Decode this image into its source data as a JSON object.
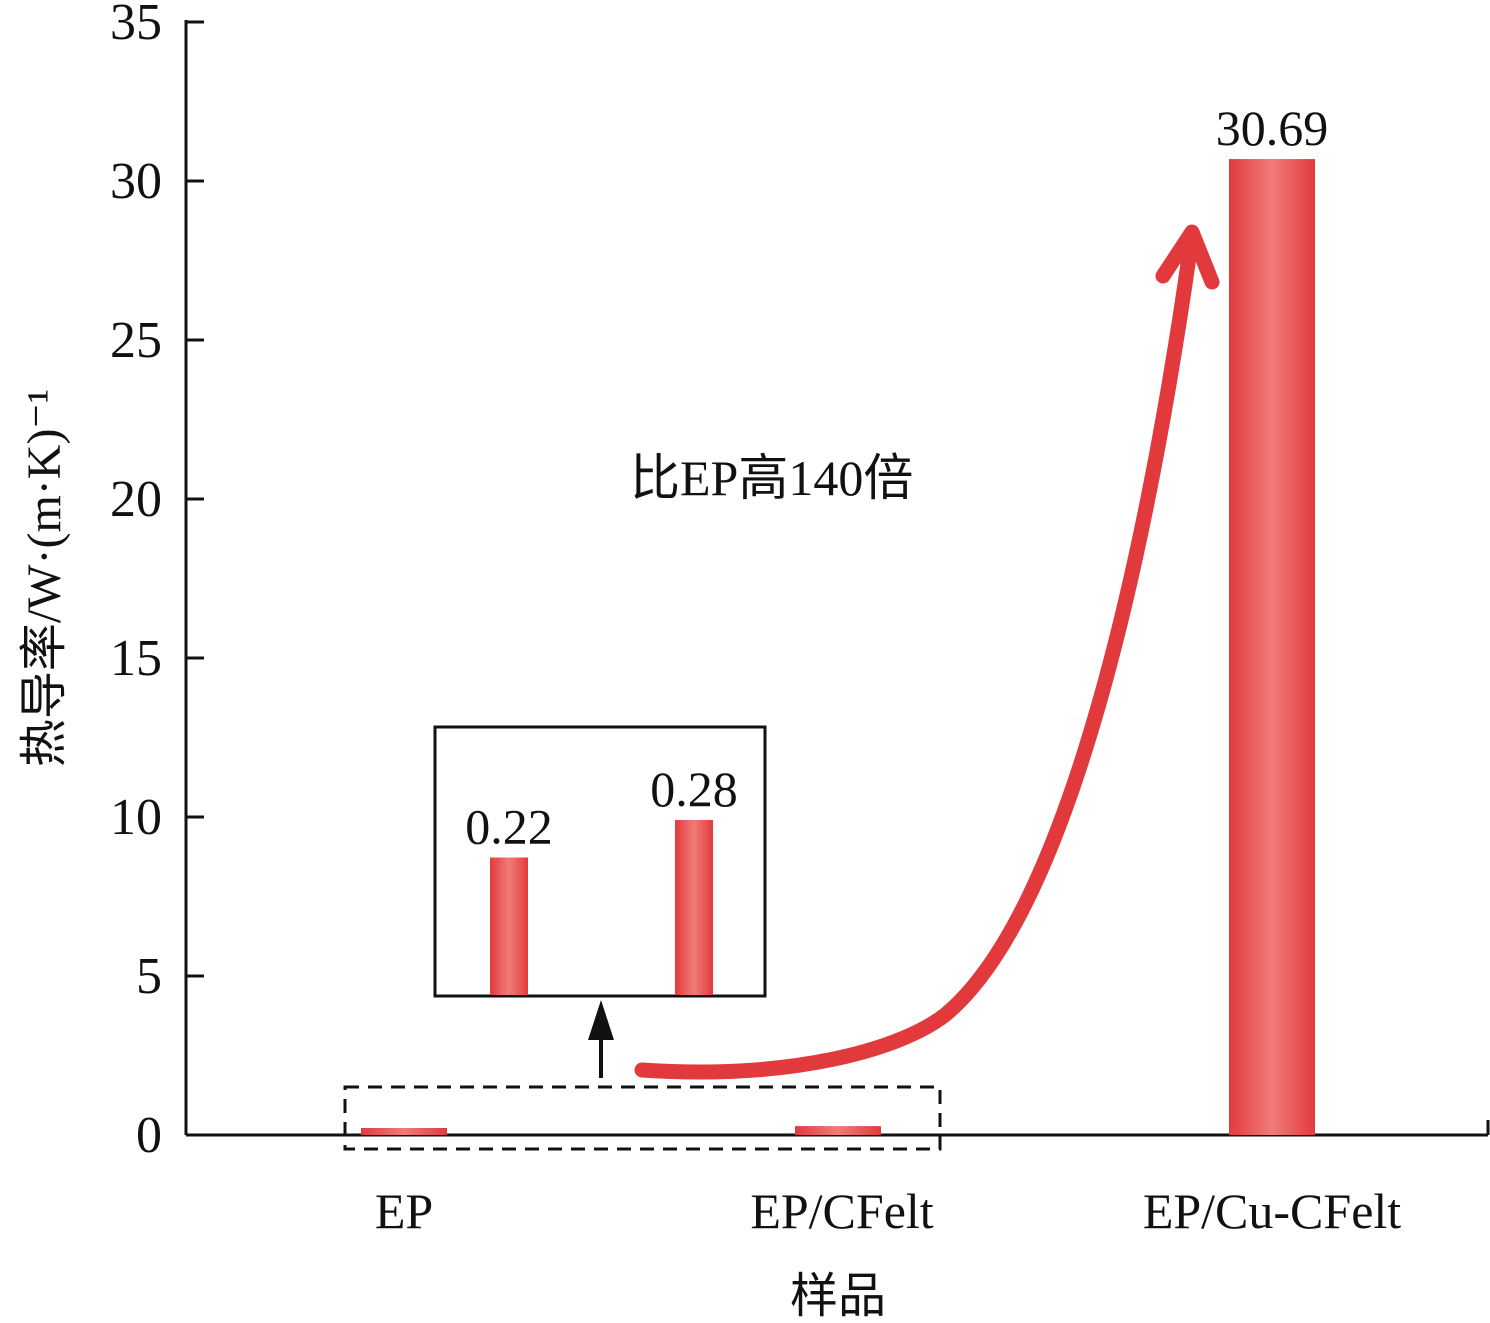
{
  "chart_data": {
    "type": "bar",
    "categories": [
      "EP",
      "EP/CFelt",
      "EP/Cu-CFelt"
    ],
    "values": [
      0.22,
      0.28,
      30.69
    ],
    "data_labels": [
      "0.22",
      "0.28",
      "30.69"
    ],
    "xlabel": "样品",
    "ylabel": "热导率/W·(m·K)⁻¹",
    "ylim": [
      0,
      35
    ],
    "yticks": [
      "0",
      "5",
      "10",
      "15",
      "20",
      "25",
      "30",
      "35"
    ],
    "bar_color": "#e23a3c",
    "bar_highlight": "#f07c78",
    "annotation": "比EP高140倍",
    "grid": false
  }
}
